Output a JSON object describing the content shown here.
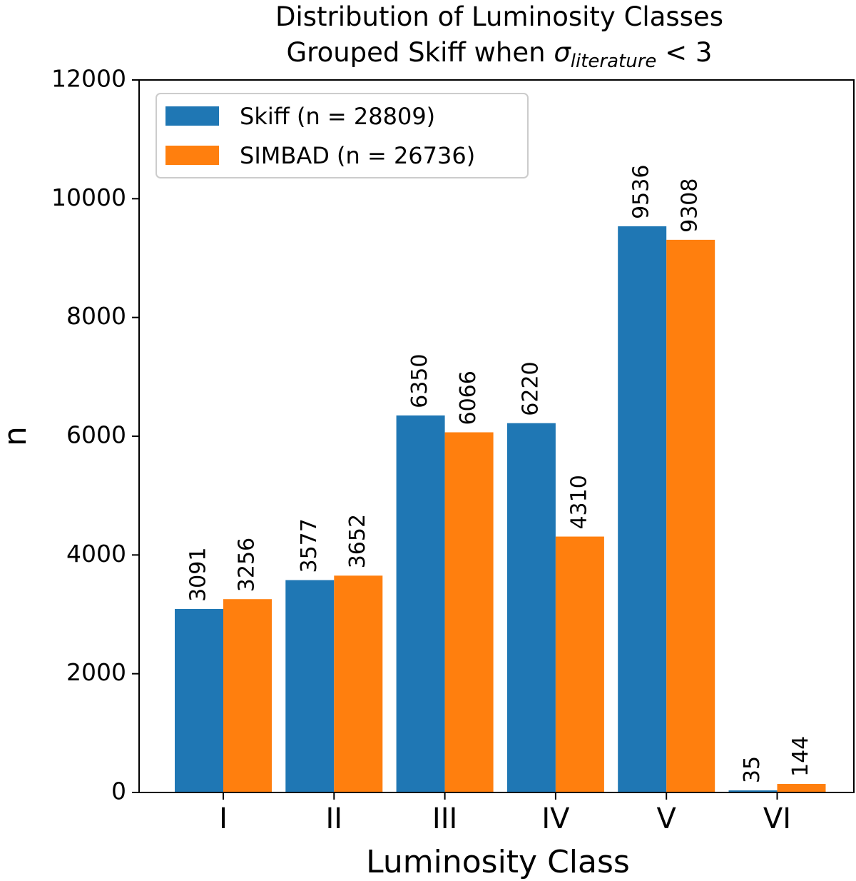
{
  "chart_data": {
    "type": "bar",
    "title_line1": "Distribution of Luminosity Classes",
    "title_line2_prefix": "Grouped Skiff when ",
    "title_symbol": "σ",
    "title_subscript": "literature",
    "title_line2_suffix": " < 3",
    "xlabel": "Luminosity Class",
    "ylabel": "n",
    "ylim": [
      0,
      12000
    ],
    "yticks": [
      "0",
      "2000",
      "4000",
      "6000",
      "8000",
      "10000",
      "12000"
    ],
    "categories": [
      "I",
      "II",
      "III",
      "IV",
      "V",
      "VI"
    ],
    "series": [
      {
        "name": "Skiff",
        "legend": "Skiff (n = 28809)",
        "color": "#1f77b4",
        "values": [
          3091,
          3577,
          6350,
          6220,
          9536,
          35
        ],
        "labels": [
          "3091",
          "3577",
          "6350",
          "6220",
          "9536",
          "35"
        ]
      },
      {
        "name": "SIMBAD",
        "legend": "SIMBAD (n = 26736)",
        "color": "#ff7f0e",
        "values": [
          3256,
          3652,
          6066,
          4310,
          9308,
          144
        ],
        "labels": [
          "3256",
          "3652",
          "6066",
          "4310",
          "9308",
          "144"
        ]
      }
    ],
    "legend_position": "top-left",
    "grid": false
  }
}
